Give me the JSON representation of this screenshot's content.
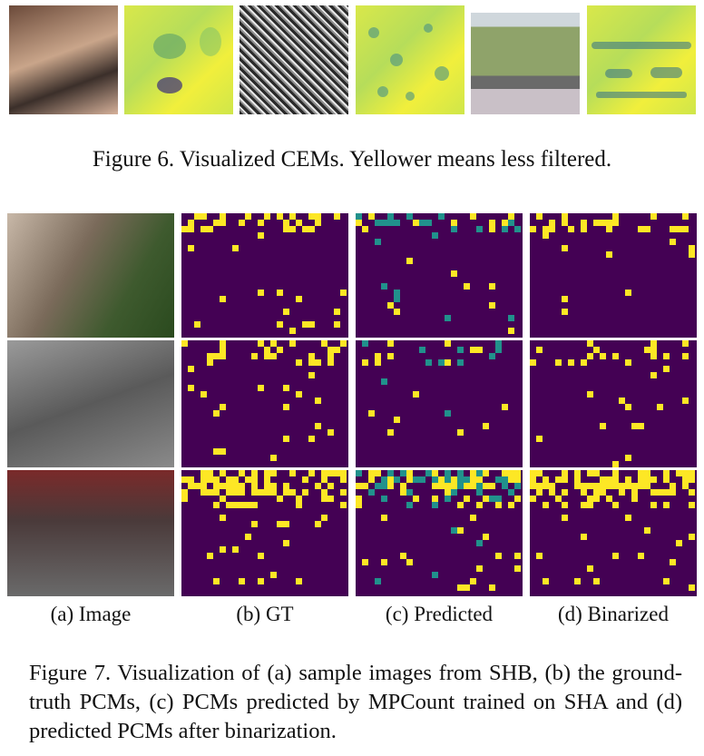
{
  "figure6": {
    "caption": "Figure 6. Visualized CEMs. Yellower means less filtered.",
    "panels": [
      "crowd-closeup-photo",
      "cem-map-1",
      "dense-crowd-photo",
      "cem-map-2",
      "field-crowd-photo",
      "cem-map-3"
    ]
  },
  "figure7": {
    "subcaptions": [
      "(a) Image",
      "(b) GT",
      "(c) Predicted",
      "(d) Binarized"
    ],
    "caption": "Figure 7. Visualization of (a) sample images from SHB, (b) the ground-truth PCMs, (c) PCMs predicted by MPCount trained on SHA and (d) predicted PCMs after binarization.",
    "rows": 3
  },
  "colors": {
    "pcm_background": "#440154",
    "pcm_dot": "#fde725",
    "pcm_mid": "#21918c"
  }
}
